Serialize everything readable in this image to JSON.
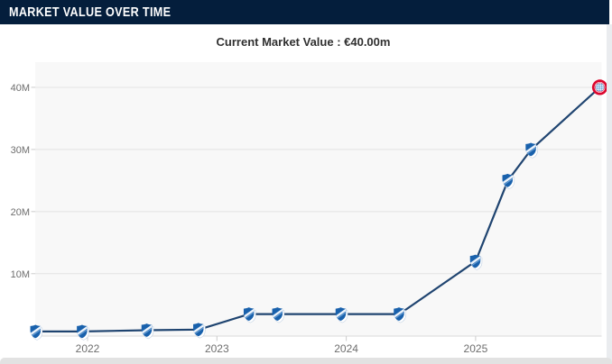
{
  "header": {
    "title": "MARKET VALUE OVER TIME"
  },
  "subtitle": "Current Market Value : €40.00m",
  "colors": {
    "header_bg": "#041e3c",
    "title_text": "#ffffff",
    "subtitle_text": "#303030",
    "line": "#1f4470",
    "plot_bg": "#f8f8f8",
    "grid": "#e3e3e3",
    "axis_text": "#6e6e6e",
    "tick": "#cccccc",
    "hoffenheim_blue": "#1961ac",
    "bayern_red": "#dc052d",
    "page_bg": "#eaecef",
    "footer_bar": "#e2e2e2"
  },
  "chart_data": {
    "type": "line",
    "title": "Market value over time (€ millions)",
    "unit": "€ million",
    "grid": true,
    "legend_position": "none",
    "xlim": [
      2021.55,
      2026.05
    ],
    "ylim": [
      0,
      44
    ],
    "x_ticks": [
      2022,
      2023,
      2024,
      2025
    ],
    "x_tick_labels": [
      "2022",
      "2023",
      "2024",
      "2025"
    ],
    "y_tick_values": [
      10,
      20,
      30,
      40
    ],
    "y_tick_labels": [
      "10M",
      "20M",
      "30M",
      "40M"
    ],
    "series": [
      {
        "name": "Market value",
        "points": [
          {
            "x": 2021.6,
            "y": 0.7,
            "marker": "hoffenheim-crest"
          },
          {
            "x": 2021.96,
            "y": 0.7,
            "marker": "hoffenheim-crest"
          },
          {
            "x": 2022.46,
            "y": 0.9,
            "marker": "hoffenheim-crest"
          },
          {
            "x": 2022.86,
            "y": 1.0,
            "marker": "hoffenheim-crest"
          },
          {
            "x": 2023.25,
            "y": 3.5,
            "marker": "hoffenheim-crest"
          },
          {
            "x": 2023.47,
            "y": 3.5,
            "marker": "hoffenheim-crest"
          },
          {
            "x": 2023.96,
            "y": 3.5,
            "marker": "hoffenheim-crest"
          },
          {
            "x": 2024.41,
            "y": 3.5,
            "marker": "hoffenheim-crest"
          },
          {
            "x": 2025.0,
            "y": 12.0,
            "marker": "hoffenheim-crest"
          },
          {
            "x": 2025.25,
            "y": 25.0,
            "marker": "hoffenheim-crest"
          },
          {
            "x": 2025.43,
            "y": 30.0,
            "marker": "hoffenheim-crest"
          },
          {
            "x": 2025.96,
            "y": 40.0,
            "marker": "bayern-crest"
          }
        ]
      }
    ]
  }
}
